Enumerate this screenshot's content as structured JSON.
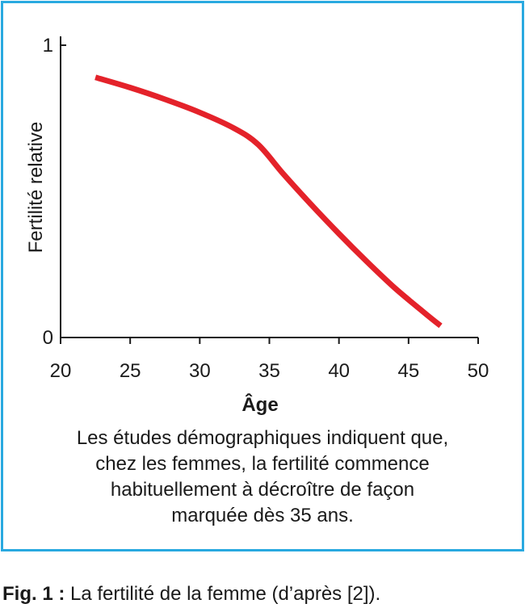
{
  "colors": {
    "frame": "#29a9e0",
    "curve": "#e4222a",
    "axis": "#1a1a1a"
  },
  "chart_data": {
    "type": "line",
    "xlabel": "Âge",
    "ylabel": "Fertilité relative",
    "xlim": [
      20,
      50
    ],
    "ylim": [
      0,
      1
    ],
    "x_ticks": [
      20,
      25,
      30,
      35,
      40,
      45,
      50
    ],
    "y_ticks": [
      0,
      1
    ],
    "grid": false,
    "series": [
      {
        "x": [
          22.5,
          25,
          27.5,
          30,
          32.5,
          34.2,
          36,
          38,
          40,
          42,
          44,
          46,
          47.3
        ],
        "y": [
          0.89,
          0.855,
          0.815,
          0.77,
          0.715,
          0.66,
          0.56,
          0.455,
          0.355,
          0.26,
          0.17,
          0.09,
          0.04
        ]
      }
    ]
  },
  "caption": {
    "lines": [
      "Les études démographiques indiquent que,",
      "chez les femmes, la fertilité commence",
      "habituellement à décroître de façon",
      "marquée dès 35 ans."
    ]
  },
  "figure_label": {
    "prefix": "Fig. 1 :",
    "text": " La fertilité de la femme (d’après [2])."
  }
}
